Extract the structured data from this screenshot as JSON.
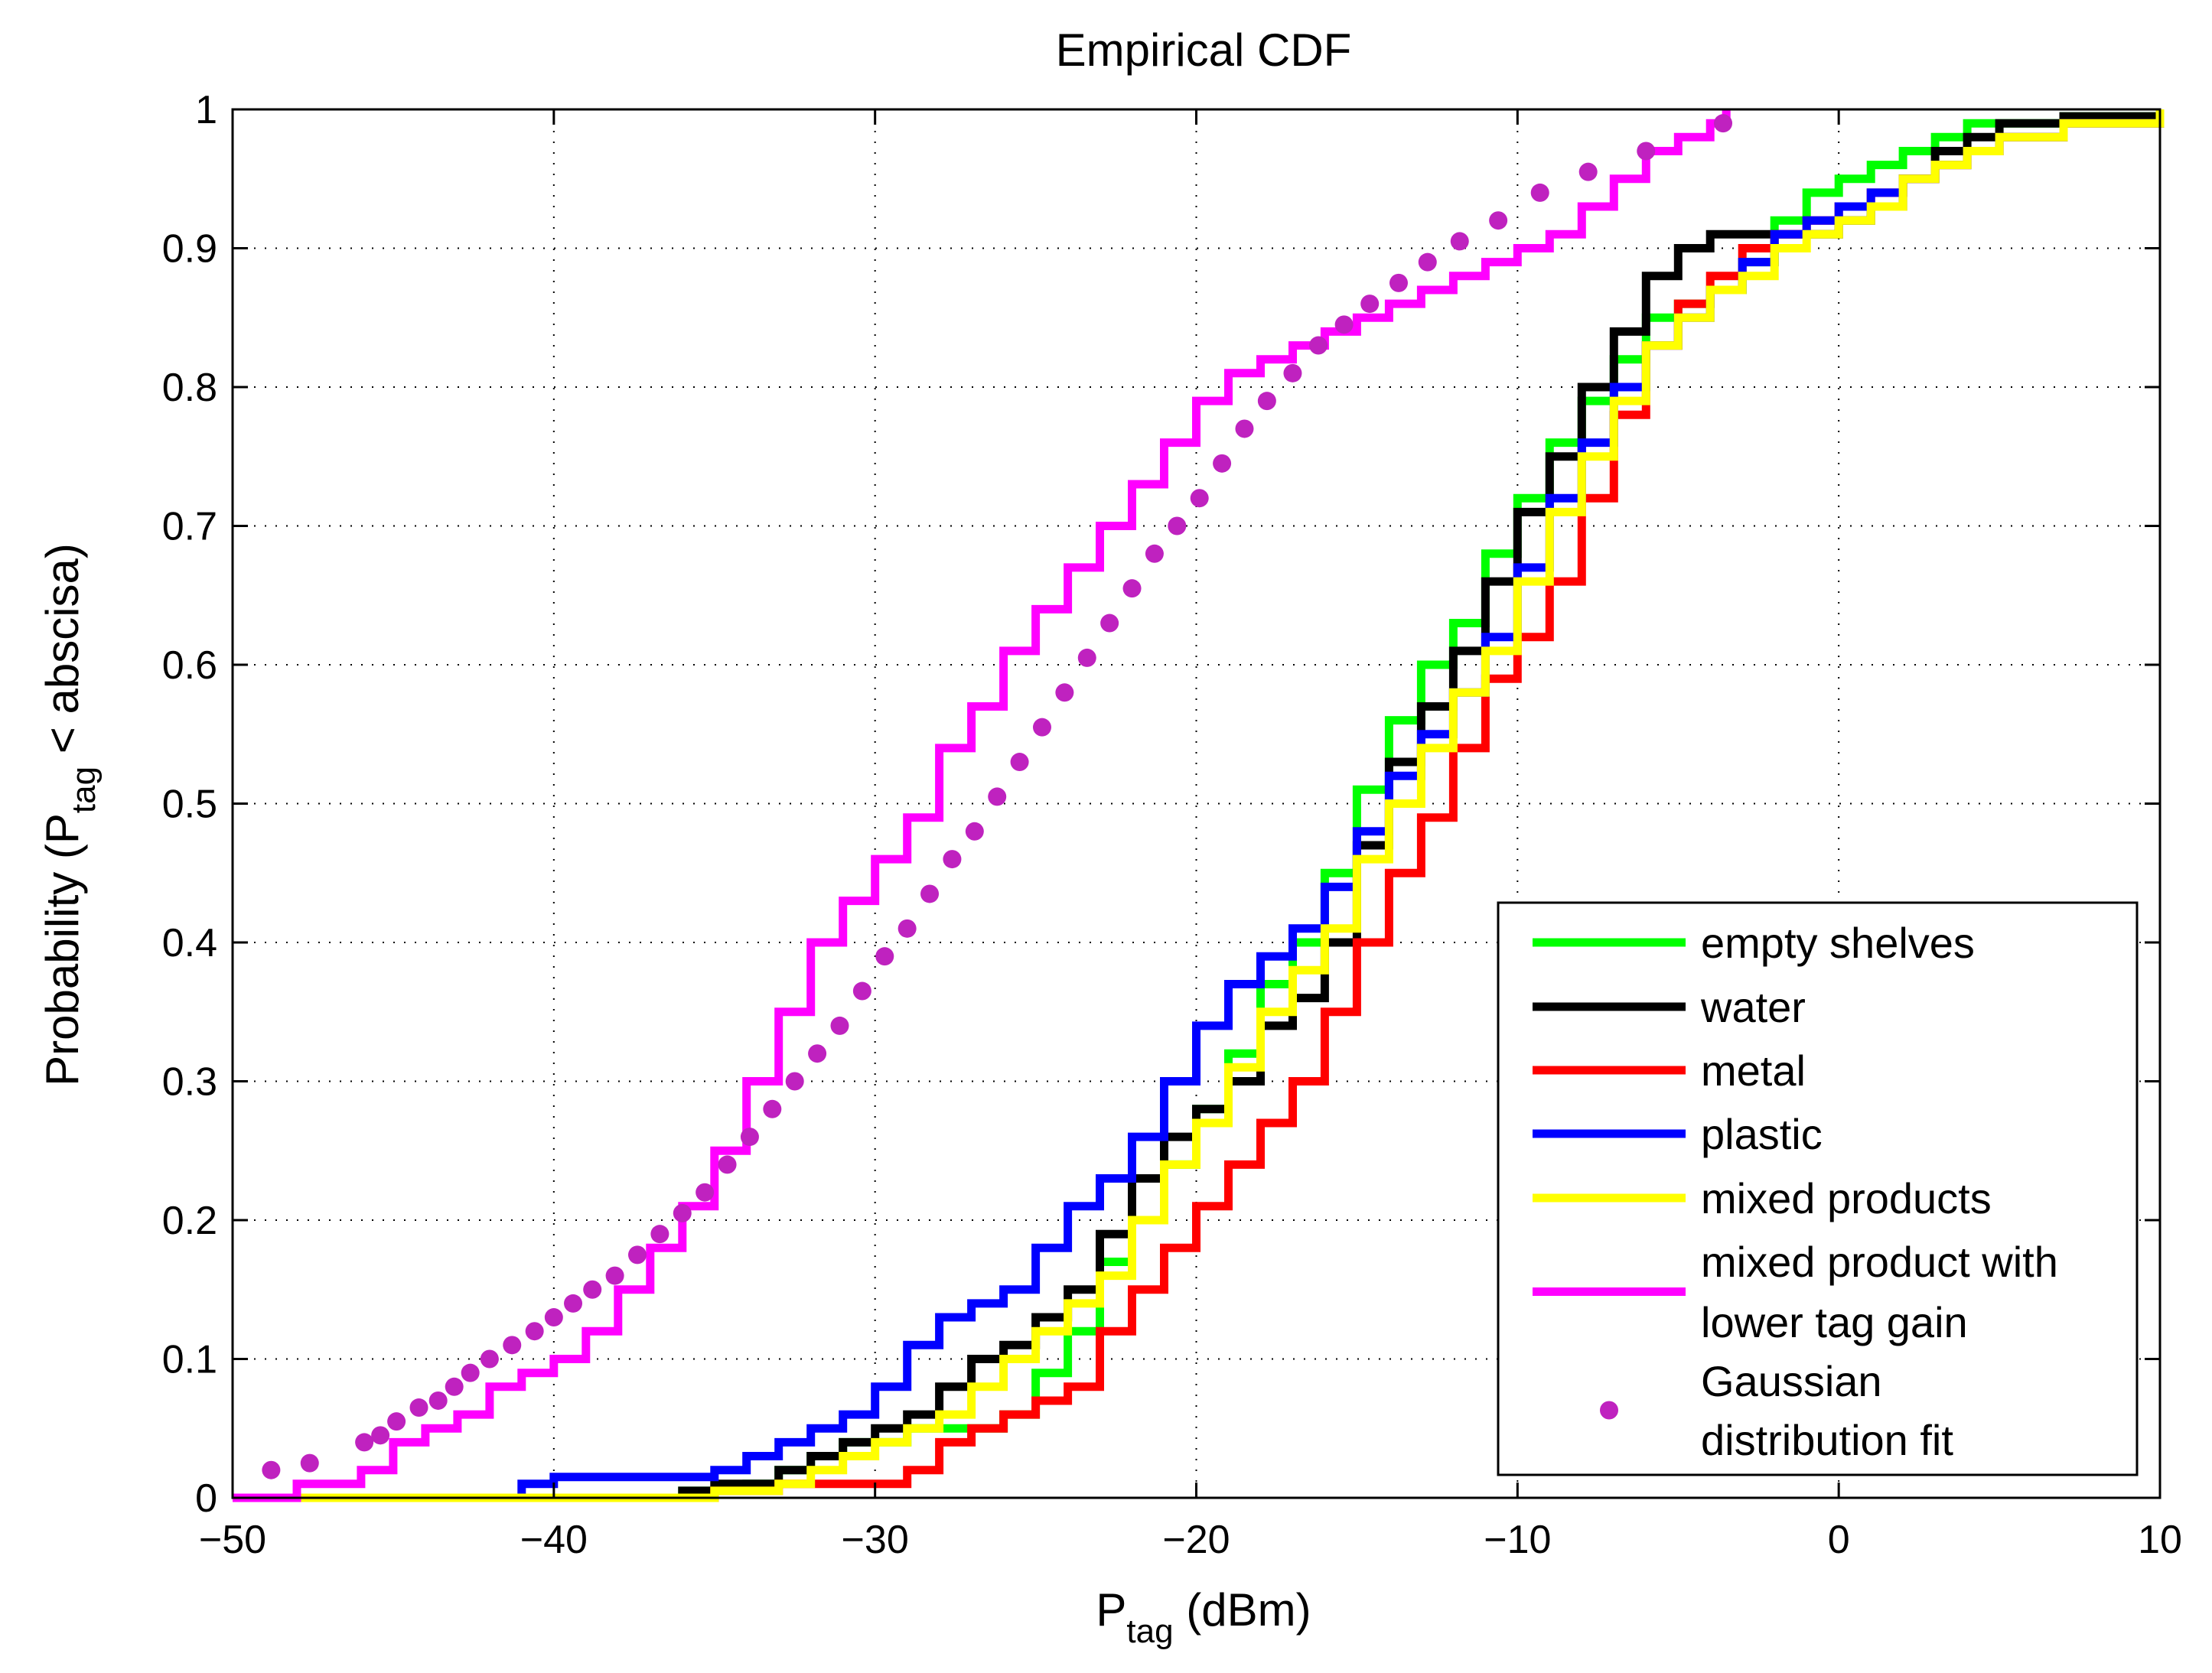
{
  "chart_data": {
    "type": "line",
    "title": "Empirical CDF",
    "xlabel": {
      "main": "P",
      "sub": "tag",
      "rest": " (dBm)"
    },
    "ylabel": {
      "main": "Probability (P",
      "sub": "tag",
      "rest": " < abscisa)"
    },
    "xlim": [
      -50,
      10
    ],
    "ylim": [
      0,
      1
    ],
    "xticks": [
      -50,
      -40,
      -30,
      -20,
      -10,
      0,
      10
    ],
    "xtick_labels": [
      "−50",
      "−40",
      "−30",
      "−20",
      "−10",
      "0",
      "10"
    ],
    "yticks": [
      0,
      0.1,
      0.2,
      0.3,
      0.4,
      0.5,
      0.6,
      0.7,
      0.8,
      0.9,
      1
    ],
    "ytick_labels": [
      "0",
      "0.1",
      "0.2",
      "0.3",
      "0.4",
      "0.5",
      "0.6",
      "0.7",
      "0.8",
      "0.9",
      "1"
    ],
    "grid": true,
    "legend_position": "bottom-right",
    "series": [
      {
        "name": "empty shelves",
        "legend_label": [
          "empty shelves"
        ],
        "color": "#00ff00",
        "style": "step",
        "x": [
          -50,
          -36,
          -34,
          -33,
          -32,
          -31,
          -29,
          -27,
          -26,
          -25,
          -24,
          -23,
          -22,
          -21,
          -20,
          -19,
          -18,
          -17,
          -16,
          -15,
          -14,
          -13,
          -12,
          -11,
          -10,
          -9,
          -8,
          -7,
          -6,
          -5,
          -4,
          -3,
          -2,
          -1,
          0,
          1,
          2,
          3,
          4,
          5,
          7,
          10
        ],
        "y": [
          0,
          0.005,
          0.01,
          0.02,
          0.03,
          0.04,
          0.05,
          0.05,
          0.06,
          0.09,
          0.12,
          0.17,
          0.2,
          0.24,
          0.28,
          0.32,
          0.37,
          0.4,
          0.45,
          0.51,
          0.56,
          0.6,
          0.63,
          0.68,
          0.72,
          0.76,
          0.79,
          0.82,
          0.85,
          0.86,
          0.87,
          0.89,
          0.92,
          0.94,
          0.95,
          0.96,
          0.97,
          0.98,
          0.99,
          0.99,
          0.995,
          1.0
        ]
      },
      {
        "name": "water",
        "legend_label": [
          "water"
        ],
        "color": "#000000",
        "style": "step",
        "x": [
          -50,
          -36,
          -35,
          -33,
          -32,
          -31,
          -30,
          -29,
          -28,
          -27,
          -26,
          -25,
          -24,
          -23,
          -22,
          -21,
          -20,
          -19,
          -18,
          -17,
          -16,
          -15,
          -14,
          -13,
          -12,
          -11,
          -10,
          -9,
          -8,
          -7,
          -6,
          -5,
          -4,
          -3,
          -2,
          -1,
          0,
          1,
          2,
          3,
          4,
          5,
          7,
          10
        ],
        "y": [
          0,
          0.005,
          0.01,
          0.02,
          0.03,
          0.04,
          0.05,
          0.06,
          0.08,
          0.1,
          0.11,
          0.13,
          0.15,
          0.19,
          0.23,
          0.26,
          0.28,
          0.3,
          0.34,
          0.36,
          0.4,
          0.47,
          0.53,
          0.57,
          0.61,
          0.66,
          0.71,
          0.75,
          0.8,
          0.84,
          0.88,
          0.9,
          0.91,
          0.91,
          0.91,
          0.91,
          0.92,
          0.93,
          0.95,
          0.97,
          0.98,
          0.99,
          0.995,
          1.0
        ]
      },
      {
        "name": "metal",
        "legend_label": [
          "metal"
        ],
        "color": "#ff0000",
        "style": "step",
        "x": [
          -50,
          -35,
          -33,
          -32,
          -30,
          -29,
          -28,
          -27,
          -26,
          -25,
          -24,
          -23,
          -22,
          -21,
          -20,
          -19,
          -18,
          -17,
          -16,
          -15,
          -14,
          -13,
          -12,
          -11,
          -10,
          -9,
          -8,
          -7,
          -6,
          -5,
          -4,
          -3,
          -2,
          -1,
          0,
          1,
          2,
          3,
          4,
          5,
          7,
          10
        ],
        "y": [
          0,
          0.005,
          0.01,
          0.01,
          0.01,
          0.02,
          0.04,
          0.05,
          0.06,
          0.07,
          0.08,
          0.12,
          0.15,
          0.18,
          0.21,
          0.24,
          0.27,
          0.3,
          0.35,
          0.4,
          0.45,
          0.49,
          0.54,
          0.59,
          0.62,
          0.66,
          0.72,
          0.78,
          0.83,
          0.86,
          0.88,
          0.9,
          0.91,
          0.92,
          0.93,
          0.94,
          0.95,
          0.96,
          0.97,
          0.98,
          0.99,
          1.0
        ]
      },
      {
        "name": "plastic",
        "legend_label": [
          "plastic"
        ],
        "color": "#0000ff",
        "style": "step",
        "x": [
          -50,
          -41,
          -40,
          -35,
          -34,
          -33,
          -32,
          -31,
          -30,
          -29,
          -28,
          -27,
          -26,
          -25,
          -24,
          -23,
          -22,
          -21,
          -20,
          -19,
          -18,
          -17,
          -16,
          -15,
          -14,
          -13,
          -12,
          -11,
          -10,
          -9,
          -8,
          -7,
          -6,
          -5,
          -4,
          -3,
          -2,
          -1,
          0,
          1,
          2,
          3,
          4,
          5,
          7,
          10
        ],
        "y": [
          0,
          0.01,
          0.015,
          0.02,
          0.03,
          0.04,
          0.05,
          0.06,
          0.08,
          0.11,
          0.13,
          0.14,
          0.15,
          0.18,
          0.21,
          0.23,
          0.26,
          0.3,
          0.34,
          0.37,
          0.39,
          0.41,
          0.44,
          0.48,
          0.52,
          0.55,
          0.58,
          0.62,
          0.67,
          0.72,
          0.76,
          0.8,
          0.83,
          0.85,
          0.87,
          0.89,
          0.91,
          0.92,
          0.93,
          0.94,
          0.95,
          0.96,
          0.97,
          0.98,
          0.99,
          1.0
        ]
      },
      {
        "name": "mixed products",
        "legend_label": [
          "mixed products"
        ],
        "color": "#ffff00",
        "style": "step",
        "x": [
          -50,
          -35,
          -33,
          -32,
          -31,
          -30,
          -29,
          -28,
          -27,
          -26,
          -25,
          -24,
          -23,
          -22,
          -21,
          -20,
          -19,
          -18,
          -17,
          -16,
          -15,
          -14,
          -13,
          -12,
          -11,
          -10,
          -9,
          -8,
          -7,
          -6,
          -5,
          -4,
          -3,
          -2,
          -1,
          0,
          1,
          2,
          3,
          4,
          5,
          7,
          10
        ],
        "y": [
          0,
          0.005,
          0.01,
          0.02,
          0.03,
          0.04,
          0.05,
          0.06,
          0.08,
          0.1,
          0.12,
          0.14,
          0.16,
          0.2,
          0.24,
          0.27,
          0.31,
          0.35,
          0.38,
          0.41,
          0.46,
          0.5,
          0.54,
          0.58,
          0.61,
          0.66,
          0.71,
          0.75,
          0.79,
          0.83,
          0.85,
          0.87,
          0.88,
          0.9,
          0.91,
          0.92,
          0.93,
          0.95,
          0.96,
          0.97,
          0.98,
          0.99,
          1.0
        ]
      },
      {
        "name": "mixed product with lower tag gain",
        "legend_label": [
          "mixed product with",
          "lower tag gain"
        ],
        "color": "#ff00ff",
        "style": "step",
        "x": [
          -50,
          -48,
          -46,
          -45,
          -44,
          -43,
          -42,
          -41,
          -40,
          -39,
          -38,
          -37,
          -36,
          -35,
          -34,
          -33,
          -32,
          -31,
          -30,
          -29,
          -28,
          -27,
          -26,
          -25,
          -24,
          -23,
          -22,
          -21,
          -20,
          -19,
          -18,
          -17,
          -16,
          -15,
          -14,
          -13,
          -12,
          -11,
          -10,
          -9,
          -8,
          -7,
          -6,
          -5,
          -4,
          -3.5
        ],
        "y": [
          0,
          0.01,
          0.02,
          0.04,
          0.05,
          0.06,
          0.08,
          0.09,
          0.1,
          0.12,
          0.15,
          0.18,
          0.21,
          0.25,
          0.3,
          0.35,
          0.4,
          0.43,
          0.46,
          0.49,
          0.54,
          0.57,
          0.61,
          0.64,
          0.67,
          0.7,
          0.73,
          0.76,
          0.79,
          0.81,
          0.82,
          0.83,
          0.84,
          0.85,
          0.86,
          0.87,
          0.88,
          0.89,
          0.9,
          0.91,
          0.93,
          0.95,
          0.97,
          0.98,
          0.99,
          1.0
        ]
      },
      {
        "name": "Gaussian distribution fit",
        "legend_label": [
          "Gaussian",
          "distribution fit"
        ],
        "color": "#bf22bf",
        "style": "marker",
        "x": [
          -48.8,
          -47.6,
          -45.9,
          -45.4,
          -44.9,
          -44.2,
          -43.6,
          -43.1,
          -42.6,
          -42.0,
          -41.3,
          -40.6,
          -40.0,
          -39.4,
          -38.8,
          -38.1,
          -37.4,
          -36.7,
          -36.0,
          -35.3,
          -34.6,
          -33.9,
          -33.2,
          -32.5,
          -31.8,
          -31.1,
          -30.4,
          -29.7,
          -29.0,
          -28.3,
          -27.6,
          -26.9,
          -26.2,
          -25.5,
          -24.8,
          -24.1,
          -23.4,
          -22.7,
          -22.0,
          -21.3,
          -20.6,
          -19.9,
          -19.2,
          -18.5,
          -17.8,
          -17.0,
          -16.2,
          -15.4,
          -14.6,
          -13.7,
          -12.8,
          -11.8,
          -10.6,
          -9.3,
          -7.8,
          -6.0,
          -3.6
        ],
        "y": [
          0.02,
          0.025,
          0.04,
          0.045,
          0.055,
          0.065,
          0.07,
          0.08,
          0.09,
          0.1,
          0.11,
          0.12,
          0.13,
          0.14,
          0.15,
          0.16,
          0.175,
          0.19,
          0.205,
          0.22,
          0.24,
          0.26,
          0.28,
          0.3,
          0.32,
          0.34,
          0.365,
          0.39,
          0.41,
          0.435,
          0.46,
          0.48,
          0.505,
          0.53,
          0.555,
          0.58,
          0.605,
          0.63,
          0.655,
          0.68,
          0.7,
          0.72,
          0.745,
          0.77,
          0.79,
          0.81,
          0.83,
          0.845,
          0.86,
          0.875,
          0.89,
          0.905,
          0.92,
          0.94,
          0.955,
          0.97,
          0.99
        ]
      }
    ]
  }
}
